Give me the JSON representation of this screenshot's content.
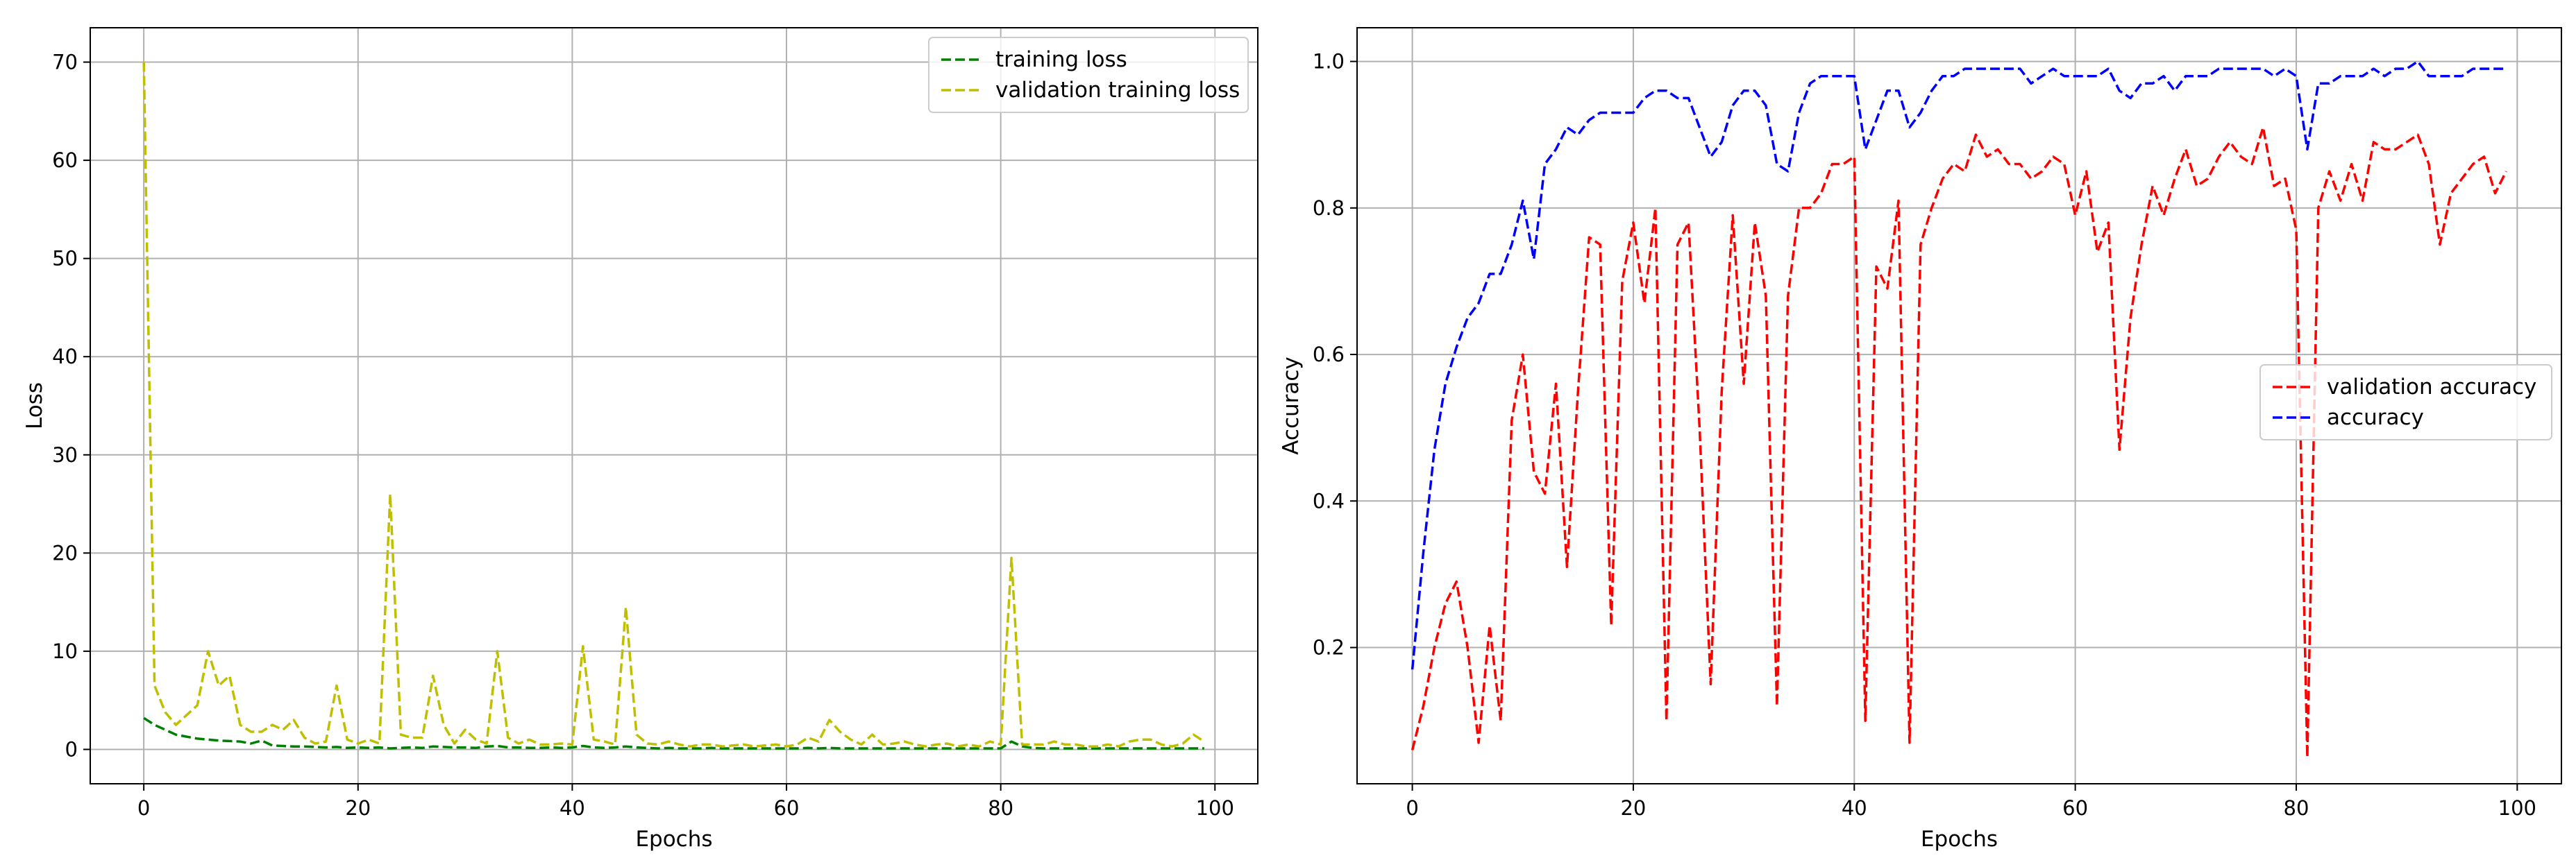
{
  "chart_data": [
    {
      "type": "line",
      "title": "",
      "xlabel": "Epochs",
      "ylabel": "Loss",
      "xlim": [
        -5,
        104
      ],
      "ylim": [
        -3.5,
        73.5
      ],
      "xticks": [
        0,
        20,
        40,
        60,
        80,
        100
      ],
      "yticks": [
        0,
        10,
        20,
        30,
        40,
        50,
        60,
        70
      ],
      "grid": true,
      "legend_position": "top-right",
      "series": [
        {
          "name": "training loss",
          "color": "#008000",
          "style": "dashed",
          "x": [
            0,
            1,
            2,
            3,
            4,
            5,
            6,
            7,
            8,
            9,
            10,
            11,
            12,
            13,
            14,
            15,
            16,
            17,
            18,
            19,
            20,
            21,
            22,
            23,
            24,
            25,
            26,
            27,
            28,
            29,
            30,
            31,
            32,
            33,
            34,
            35,
            36,
            37,
            38,
            39,
            40,
            41,
            42,
            43,
            44,
            45,
            46,
            47,
            48,
            49,
            50,
            51,
            52,
            53,
            54,
            55,
            56,
            57,
            58,
            59,
            60,
            61,
            62,
            63,
            64,
            65,
            66,
            67,
            68,
            69,
            70,
            71,
            72,
            73,
            74,
            75,
            76,
            77,
            78,
            79,
            80,
            81,
            82,
            83,
            84,
            85,
            86,
            87,
            88,
            89,
            90,
            91,
            92,
            93,
            94,
            95,
            96,
            97,
            98,
            99
          ],
          "values": [
            3.2,
            2.5,
            2.0,
            1.5,
            1.3,
            1.1,
            1.0,
            0.9,
            0.85,
            0.8,
            0.6,
            0.9,
            0.4,
            0.35,
            0.3,
            0.3,
            0.25,
            0.2,
            0.25,
            0.15,
            0.2,
            0.15,
            0.2,
            0.1,
            0.15,
            0.2,
            0.15,
            0.3,
            0.25,
            0.2,
            0.2,
            0.15,
            0.3,
            0.35,
            0.2,
            0.2,
            0.15,
            0.15,
            0.2,
            0.15,
            0.2,
            0.35,
            0.2,
            0.15,
            0.2,
            0.3,
            0.2,
            0.15,
            0.1,
            0.15,
            0.1,
            0.1,
            0.1,
            0.15,
            0.1,
            0.1,
            0.1,
            0.1,
            0.1,
            0.1,
            0.1,
            0.1,
            0.15,
            0.1,
            0.15,
            0.1,
            0.1,
            0.1,
            0.1,
            0.1,
            0.1,
            0.1,
            0.1,
            0.1,
            0.1,
            0.1,
            0.1,
            0.1,
            0.1,
            0.1,
            0.1,
            0.8,
            0.3,
            0.15,
            0.1,
            0.1,
            0.1,
            0.1,
            0.1,
            0.1,
            0.1,
            0.1,
            0.1,
            0.1,
            0.1,
            0.1,
            0.1,
            0.1,
            0.1,
            0.1
          ]
        },
        {
          "name": "validation training loss",
          "color": "#bfbf00",
          "style": "dashed",
          "x": [
            0,
            1,
            2,
            3,
            4,
            5,
            6,
            7,
            8,
            9,
            10,
            11,
            12,
            13,
            14,
            15,
            16,
            17,
            18,
            19,
            20,
            21,
            22,
            23,
            24,
            25,
            26,
            27,
            28,
            29,
            30,
            31,
            32,
            33,
            34,
            35,
            36,
            37,
            38,
            39,
            40,
            41,
            42,
            43,
            44,
            45,
            46,
            47,
            48,
            49,
            50,
            51,
            52,
            53,
            54,
            55,
            56,
            57,
            58,
            59,
            60,
            61,
            62,
            63,
            64,
            65,
            66,
            67,
            68,
            69,
            70,
            71,
            72,
            73,
            74,
            75,
            76,
            77,
            78,
            79,
            80,
            81,
            82,
            83,
            84,
            85,
            86,
            87,
            88,
            89,
            90,
            91,
            92,
            93,
            94,
            95,
            96,
            97,
            98,
            99
          ],
          "values": [
            70,
            6.5,
            3.8,
            2.5,
            3.5,
            4.5,
            10.0,
            6.5,
            7.5,
            2.5,
            1.8,
            1.8,
            2.5,
            2.0,
            3.0,
            1.2,
            0.6,
            0.8,
            6.5,
            1.0,
            0.6,
            1.0,
            0.6,
            26.0,
            1.5,
            1.2,
            1.2,
            7.5,
            2.5,
            0.6,
            2.0,
            1.0,
            0.6,
            10.0,
            1.2,
            0.6,
            1.0,
            0.5,
            0.5,
            0.6,
            0.5,
            10.5,
            1.0,
            0.8,
            0.5,
            14.5,
            1.5,
            0.6,
            0.5,
            0.8,
            0.5,
            0.3,
            0.5,
            0.5,
            0.3,
            0.4,
            0.5,
            0.3,
            0.4,
            0.5,
            0.3,
            0.5,
            1.2,
            0.8,
            3.0,
            1.8,
            1.0,
            0.5,
            1.5,
            0.5,
            0.6,
            0.8,
            0.5,
            0.3,
            0.5,
            0.6,
            0.3,
            0.5,
            0.3,
            0.8,
            0.5,
            19.5,
            0.5,
            0.5,
            0.5,
            0.8,
            0.5,
            0.5,
            0.3,
            0.3,
            0.5,
            0.3,
            0.8,
            1.0,
            1.0,
            0.5,
            0.3,
            0.6,
            1.5,
            0.8
          ]
        }
      ]
    },
    {
      "type": "line",
      "title": "",
      "xlabel": "Epochs",
      "ylabel": "Accuracy",
      "xlim": [
        -5,
        104
      ],
      "ylim": [
        0.014,
        1.046
      ],
      "xticks": [
        0,
        20,
        40,
        60,
        80,
        100
      ],
      "yticks": [
        0.2,
        0.4,
        0.6,
        0.8,
        1.0
      ],
      "grid": true,
      "legend_position": "center-right",
      "series": [
        {
          "name": "validation accuracy",
          "color": "#ff0000",
          "style": "dashed",
          "x": [
            0,
            1,
            2,
            3,
            4,
            5,
            6,
            7,
            8,
            9,
            10,
            11,
            12,
            13,
            14,
            15,
            16,
            17,
            18,
            19,
            20,
            21,
            22,
            23,
            24,
            25,
            26,
            27,
            28,
            29,
            30,
            31,
            32,
            33,
            34,
            35,
            36,
            37,
            38,
            39,
            40,
            41,
            42,
            43,
            44,
            45,
            46,
            47,
            48,
            49,
            50,
            51,
            52,
            53,
            54,
            55,
            56,
            57,
            58,
            59,
            60,
            61,
            62,
            63,
            64,
            65,
            66,
            67,
            68,
            69,
            70,
            71,
            72,
            73,
            74,
            75,
            76,
            77,
            78,
            79,
            80,
            81,
            82,
            83,
            84,
            85,
            86,
            87,
            88,
            89,
            90,
            91,
            92,
            93,
            94,
            95,
            96,
            97,
            98,
            99
          ],
          "values": [
            0.06,
            0.12,
            0.2,
            0.26,
            0.29,
            0.2,
            0.07,
            0.23,
            0.1,
            0.51,
            0.6,
            0.44,
            0.41,
            0.56,
            0.31,
            0.55,
            0.76,
            0.75,
            0.23,
            0.7,
            0.78,
            0.67,
            0.8,
            0.1,
            0.75,
            0.78,
            0.5,
            0.15,
            0.55,
            0.79,
            0.56,
            0.78,
            0.68,
            0.12,
            0.68,
            0.8,
            0.8,
            0.82,
            0.86,
            0.86,
            0.87,
            0.1,
            0.72,
            0.69,
            0.81,
            0.07,
            0.75,
            0.8,
            0.84,
            0.86,
            0.85,
            0.9,
            0.87,
            0.88,
            0.86,
            0.86,
            0.84,
            0.85,
            0.87,
            0.86,
            0.79,
            0.85,
            0.74,
            0.78,
            0.47,
            0.65,
            0.75,
            0.83,
            0.79,
            0.84,
            0.88,
            0.83,
            0.84,
            0.87,
            0.89,
            0.87,
            0.86,
            0.91,
            0.83,
            0.84,
            0.77,
            0.05,
            0.8,
            0.85,
            0.81,
            0.86,
            0.81,
            0.89,
            0.88,
            0.88,
            0.89,
            0.9,
            0.86,
            0.75,
            0.82,
            0.84,
            0.86,
            0.87,
            0.82,
            0.85
          ]
        },
        {
          "name": "accuracy",
          "color": "#0000ff",
          "style": "dashed",
          "x": [
            0,
            1,
            2,
            3,
            4,
            5,
            6,
            7,
            8,
            9,
            10,
            11,
            12,
            13,
            14,
            15,
            16,
            17,
            18,
            19,
            20,
            21,
            22,
            23,
            24,
            25,
            26,
            27,
            28,
            29,
            30,
            31,
            32,
            33,
            34,
            35,
            36,
            37,
            38,
            39,
            40,
            41,
            42,
            43,
            44,
            45,
            46,
            47,
            48,
            49,
            50,
            51,
            52,
            53,
            54,
            55,
            56,
            57,
            58,
            59,
            60,
            61,
            62,
            63,
            64,
            65,
            66,
            67,
            68,
            69,
            70,
            71,
            72,
            73,
            74,
            75,
            76,
            77,
            78,
            79,
            80,
            81,
            82,
            83,
            84,
            85,
            86,
            87,
            88,
            89,
            90,
            91,
            92,
            93,
            94,
            95,
            96,
            97,
            98,
            99
          ],
          "values": [
            0.17,
            0.33,
            0.47,
            0.56,
            0.61,
            0.65,
            0.67,
            0.71,
            0.71,
            0.75,
            0.81,
            0.73,
            0.86,
            0.88,
            0.91,
            0.9,
            0.92,
            0.93,
            0.93,
            0.93,
            0.93,
            0.95,
            0.96,
            0.96,
            0.95,
            0.95,
            0.91,
            0.87,
            0.89,
            0.94,
            0.96,
            0.96,
            0.94,
            0.86,
            0.85,
            0.93,
            0.97,
            0.98,
            0.98,
            0.98,
            0.98,
            0.88,
            0.92,
            0.96,
            0.96,
            0.91,
            0.93,
            0.96,
            0.98,
            0.98,
            0.99,
            0.99,
            0.99,
            0.99,
            0.99,
            0.99,
            0.97,
            0.98,
            0.99,
            0.98,
            0.98,
            0.98,
            0.98,
            0.99,
            0.96,
            0.95,
            0.97,
            0.97,
            0.98,
            0.96,
            0.98,
            0.98,
            0.98,
            0.99,
            0.99,
            0.99,
            0.99,
            0.99,
            0.98,
            0.99,
            0.98,
            0.88,
            0.97,
            0.97,
            0.98,
            0.98,
            0.98,
            0.99,
            0.98,
            0.99,
            0.99,
            1.0,
            0.98,
            0.98,
            0.98,
            0.98,
            0.99,
            0.99,
            0.99,
            0.99
          ]
        }
      ]
    }
  ]
}
